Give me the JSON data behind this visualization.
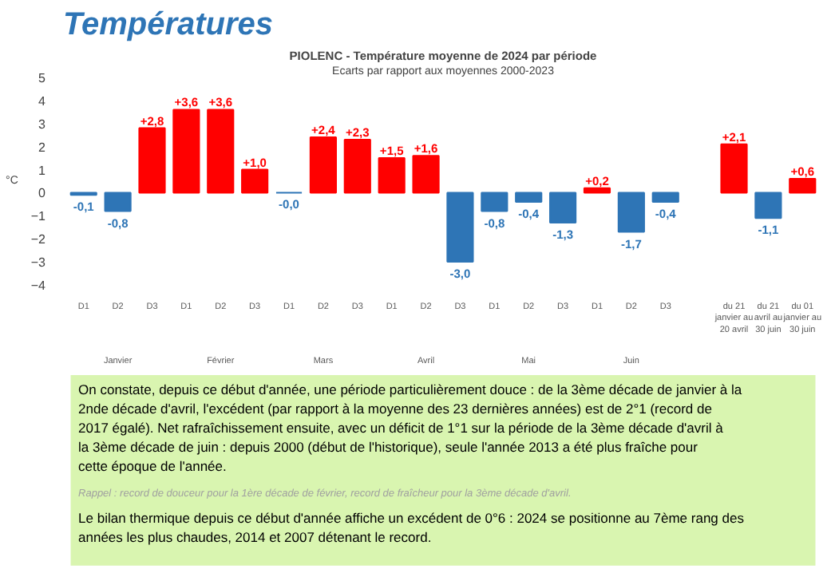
{
  "chart_data": {
    "type": "bar",
    "title": "PIOLENC - Température moyenne de 2024 par période",
    "subtitle": "Ecarts par rapport aux moyennes 2000-2023",
    "ylabel": "°C",
    "categories": [
      "D1",
      "D2",
      "D3",
      "D1",
      "D2",
      "D3",
      "D1",
      "D2",
      "D3",
      "D1",
      "D2",
      "D3",
      "D1",
      "D2",
      "D3",
      "D1",
      "D2",
      "D3",
      null,
      "du 21 janvier au 20 avril",
      "du 21 avril au 30 juin",
      "du 01 janvier au 30 juin"
    ],
    "values": [
      -0.1,
      -0.8,
      2.8,
      3.6,
      3.6,
      1.0,
      -0.0,
      2.4,
      2.3,
      1.5,
      1.6,
      -3.0,
      -0.8,
      -0.4,
      -1.3,
      0.2,
      -1.7,
      -0.4,
      null,
      2.1,
      -1.1,
      0.6
    ],
    "colors": [
      "#2e75b6",
      "#2e75b6",
      "#ff0000",
      "#ff0000",
      "#ff0000",
      "#ff0000",
      "#2e75b6",
      "#ff0000",
      "#ff0000",
      "#ff0000",
      "#ff0000",
      "#2e75b6",
      "#2e75b6",
      "#2e75b6",
      "#2e75b6",
      "#ff0000",
      "#2e75b6",
      "#2e75b6",
      null,
      "#ff0000",
      "#2e75b6",
      "#ff0000"
    ],
    "value_labels": [
      "-0,1",
      "-0,8",
      "+2,8",
      "+3,6",
      "+3,6",
      "+1,0",
      "-0,0",
      "+2,4",
      "+2,3",
      "+1,5",
      "+1,6",
      "-3,0",
      "-0,8",
      "-0,4",
      "-1,3",
      "+0,2",
      "-1,7",
      "-0,4",
      null,
      "+2,1",
      "-1,1",
      "+0,6"
    ],
    "ylim": [
      -4,
      5
    ],
    "yticks": [
      -4,
      -3,
      -2,
      -1,
      0,
      1,
      2,
      3,
      4,
      5
    ],
    "grid": false,
    "annotations": [
      "Températures",
      "Janvier",
      "Février",
      "Mars",
      "Avril",
      "Mai",
      "Juin",
      "On constate, depuis ce début d'année, une période particulièrement douce : de la 3ème décade de janvier à la 2nde décade d'avril, l'excédent (par rapport à la moyenne des 23 dernières années) est de 2°1 (record de 2017 égalé). Net rafraîchissement ensuite, avec un déficit de 1°1 sur la période de la 3ème décade d'avril à la 3ème décade de juin : depuis 2000 (début de l'historique), seule l'année 2013 a été plus fraîche pour cette époque de l'année.",
      "Rappel : record de douceur pour la 1ère décade de février, record de fraîcheur pour la 3ème décade d'avril.",
      "Le bilan thermique depuis ce début d'année affiche un excédent de 0°6 : 2024 se positionne au 7ème rang des années les plus chaudes, 2014 et 2007 détenant le record."
    ]
  }
}
